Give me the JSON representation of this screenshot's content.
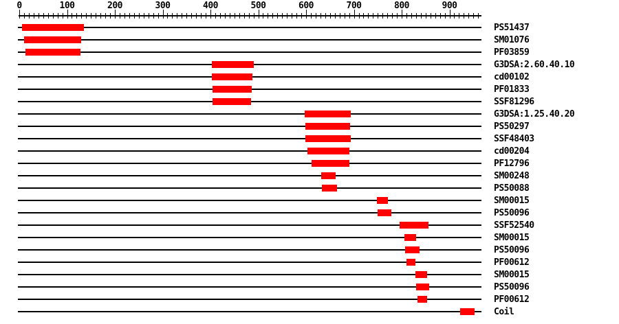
{
  "chart_data": {
    "type": "bar",
    "subtype": "horizontal-interval-domain-plot",
    "title": "",
    "axis": {
      "min": 0,
      "max": 960,
      "minor_tick_interval": 10,
      "major_tick_interval": 100,
      "major_tick_labels": [
        "0",
        "100",
        "200",
        "300",
        "400",
        "500",
        "600",
        "700",
        "800",
        "900"
      ]
    },
    "legend_position": "right-of-each-row",
    "grid": false,
    "rows": [
      {
        "label": "PS51437",
        "start": 6,
        "end": 135
      },
      {
        "label": "SM01076",
        "start": 10,
        "end": 129
      },
      {
        "label": "PF03859",
        "start": 13,
        "end": 128
      },
      {
        "label": "G3DSA:2.60.40.10",
        "start": 403,
        "end": 491
      },
      {
        "label": "cd00102",
        "start": 403,
        "end": 488
      },
      {
        "label": "PF01833",
        "start": 404,
        "end": 486
      },
      {
        "label": "SSF81296",
        "start": 404,
        "end": 485
      },
      {
        "label": "G3DSA:1.25.40.20",
        "start": 597,
        "end": 694
      },
      {
        "label": "PS50297",
        "start": 599,
        "end": 692
      },
      {
        "label": "SSF48403",
        "start": 599,
        "end": 694
      },
      {
        "label": "cd00204",
        "start": 603,
        "end": 691
      },
      {
        "label": "PF12796",
        "start": 611,
        "end": 691
      },
      {
        "label": "SM00248",
        "start": 632,
        "end": 662
      },
      {
        "label": "PS50088",
        "start": 633,
        "end": 665
      },
      {
        "label": "SM00015",
        "start": 748,
        "end": 771
      },
      {
        "label": "PS50096",
        "start": 750,
        "end": 778
      },
      {
        "label": "SSF52540",
        "start": 796,
        "end": 856
      },
      {
        "label": "SM00015",
        "start": 806,
        "end": 830
      },
      {
        "label": "PS50096",
        "start": 807,
        "end": 837
      },
      {
        "label": "PF00612",
        "start": 810,
        "end": 829
      },
      {
        "label": "SM00015",
        "start": 829,
        "end": 853
      },
      {
        "label": "PS50096",
        "start": 830,
        "end": 858
      },
      {
        "label": "PF00612",
        "start": 833,
        "end": 853
      },
      {
        "label": "Coil",
        "start": 922,
        "end": 952
      }
    ]
  },
  "colors": {
    "bar": "#FF0000",
    "line": "#000000",
    "text": "#000000",
    "background": "#FFFFFF"
  }
}
